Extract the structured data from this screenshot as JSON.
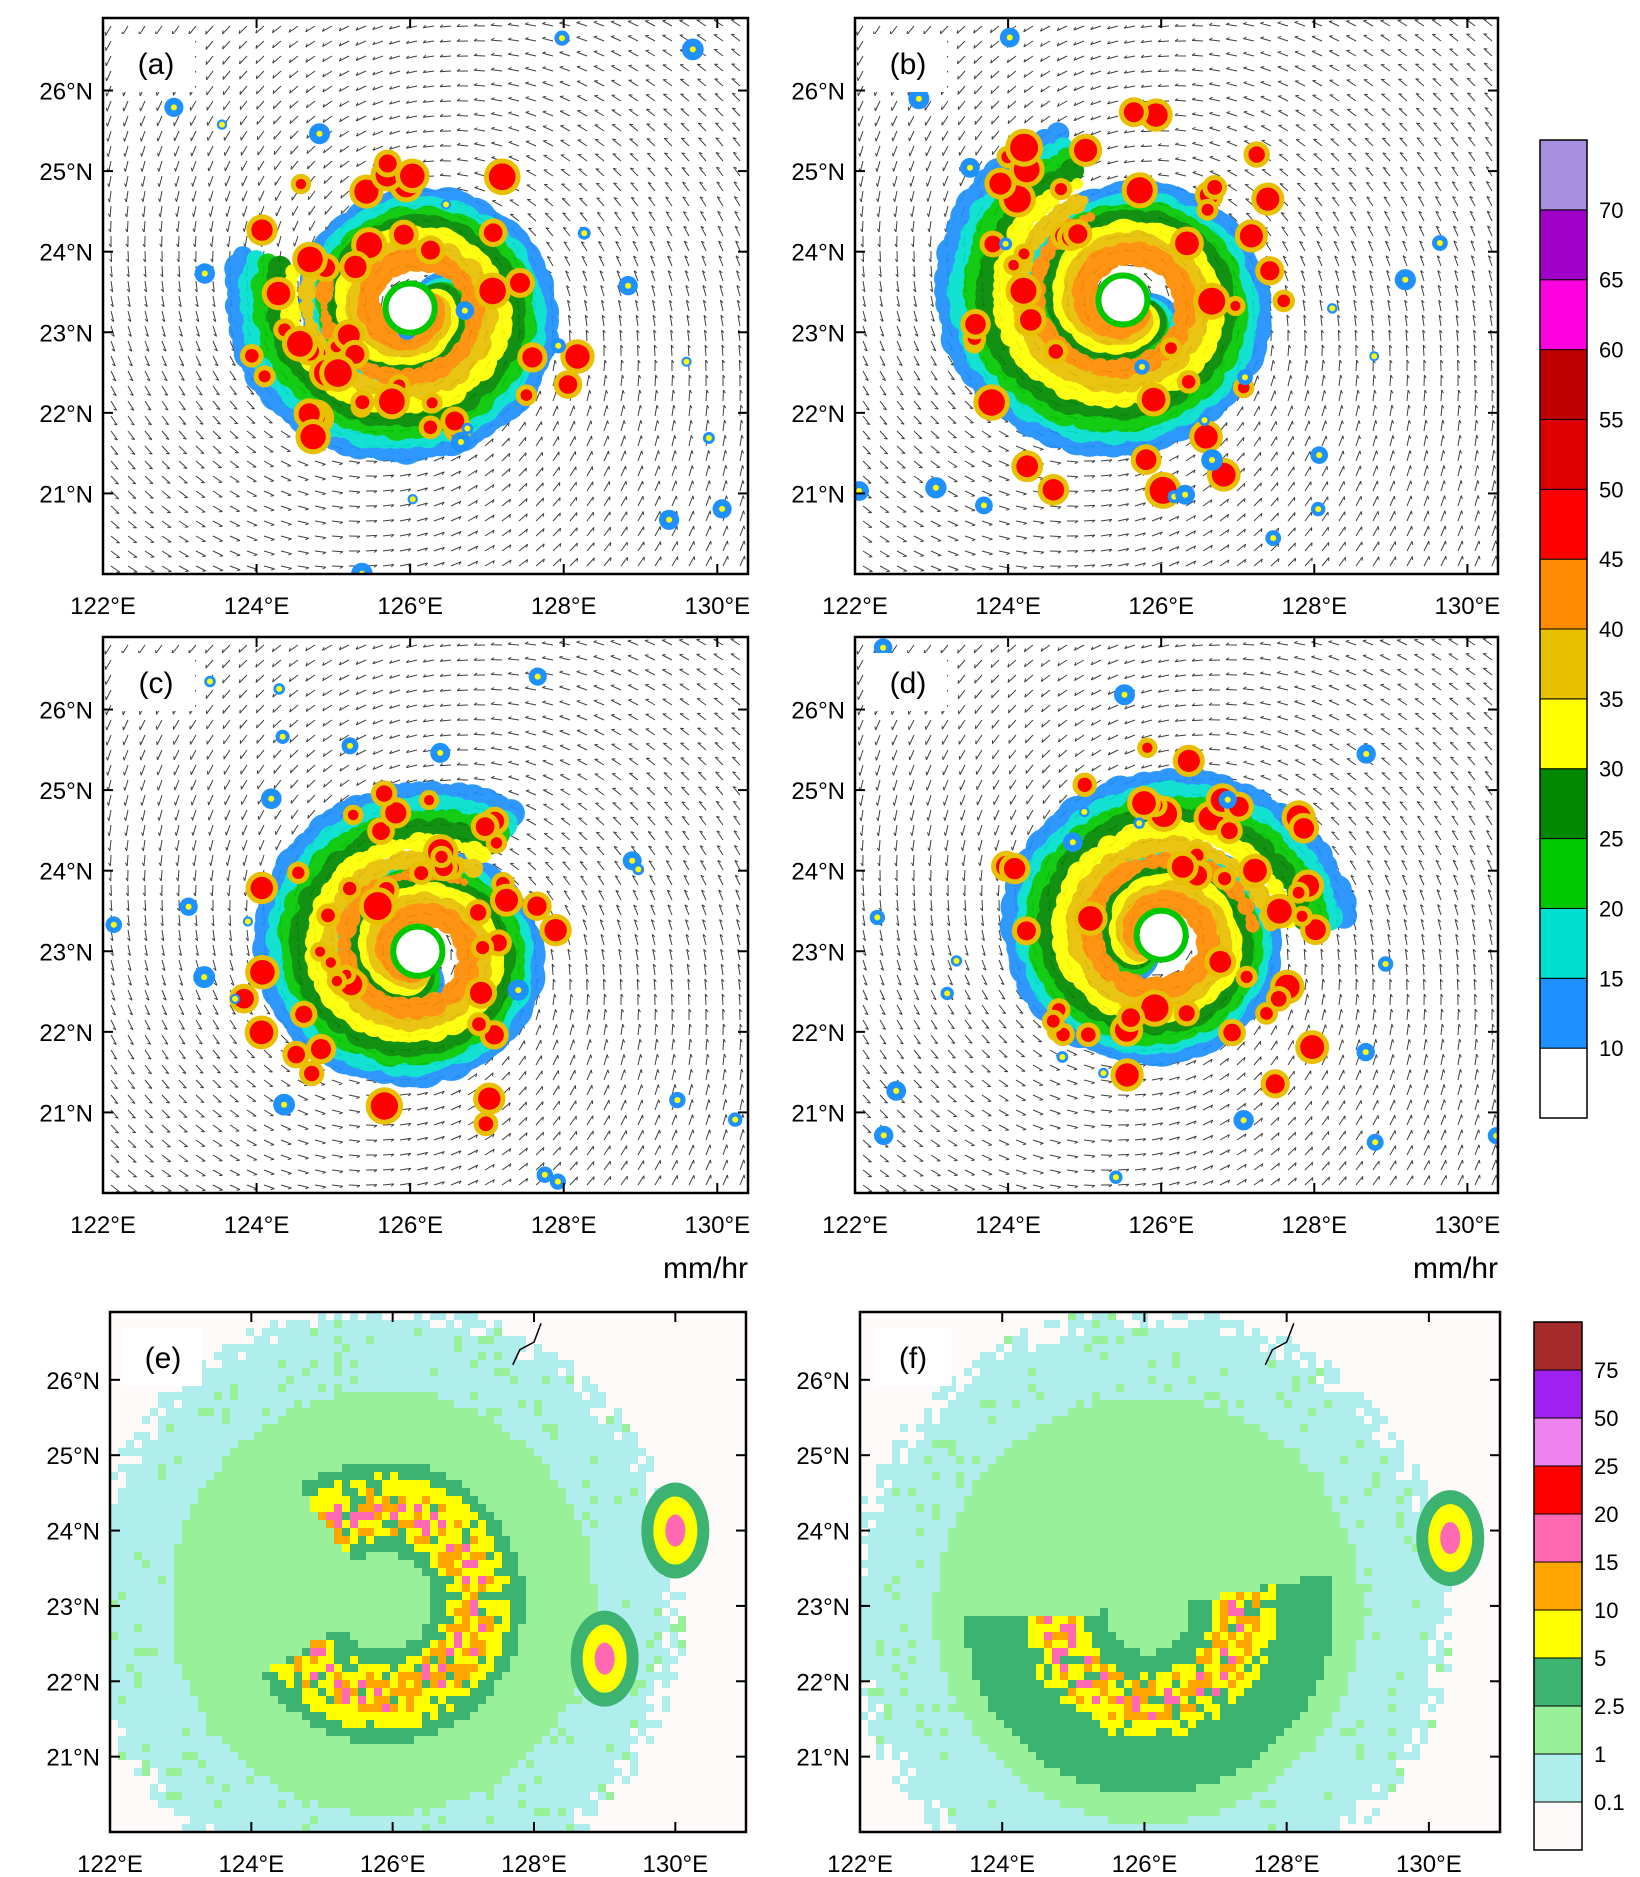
{
  "chart_data": {
    "type": "heatmap",
    "lon_ticks": [
      "122°E",
      "124°E",
      "126°E",
      "128°E",
      "130°E"
    ],
    "lat_ticks": [
      "21°N",
      "22°N",
      "23°N",
      "24°N",
      "25°N",
      "26°N"
    ],
    "lon_values": [
      122,
      124,
      126,
      128,
      130
    ],
    "lat_values": [
      21,
      22,
      23,
      24,
      25,
      26
    ],
    "top_panels": {
      "xlim": [
        122,
        130.4
      ],
      "ylim": [
        20,
        26.9
      ],
      "unit": "mm/hr",
      "panels": [
        {
          "tag": "(a)",
          "center": [
            126.0,
            23.3
          ],
          "size": 2.2
        },
        {
          "tag": "(b)",
          "center": [
            125.5,
            23.4
          ],
          "size": 2.4
        },
        {
          "tag": "(c)",
          "center": [
            126.1,
            23.0
          ],
          "size": 2.2
        },
        {
          "tag": "(d)",
          "center": [
            126.0,
            23.2
          ],
          "size": 2.3
        }
      ],
      "colorbar": {
        "levels": [
          "10",
          "15",
          "20",
          "25",
          "30",
          "35",
          "40",
          "45",
          "50",
          "55",
          "60",
          "65",
          "70"
        ],
        "colors": [
          "#ffffff",
          "#1e90ff",
          "#00e0d0",
          "#00c800",
          "#008800",
          "#ffff00",
          "#e8c000",
          "#ff8c00",
          "#ff0000",
          "#dc0000",
          "#be0000",
          "#ff00e0",
          "#a000c8",
          "#a890e0"
        ]
      }
    },
    "bottom_panels": {
      "xlim": [
        122,
        131
      ],
      "ylim": [
        20,
        26.9
      ],
      "panels": [
        {
          "tag": "(e)"
        },
        {
          "tag": "(f)"
        }
      ],
      "colorbar": {
        "levels": [
          "0.1",
          "1",
          "2.5",
          "5",
          "10",
          "15",
          "20",
          "25",
          "50",
          "75"
        ],
        "colors": [
          "#fffafa",
          "#b0eeee",
          "#98f098",
          "#3cb371",
          "#ffff00",
          "#ffa500",
          "#ff69b4",
          "#ff0000",
          "#ee82ee",
          "#a020f0",
          "#a52a2a"
        ]
      }
    }
  }
}
